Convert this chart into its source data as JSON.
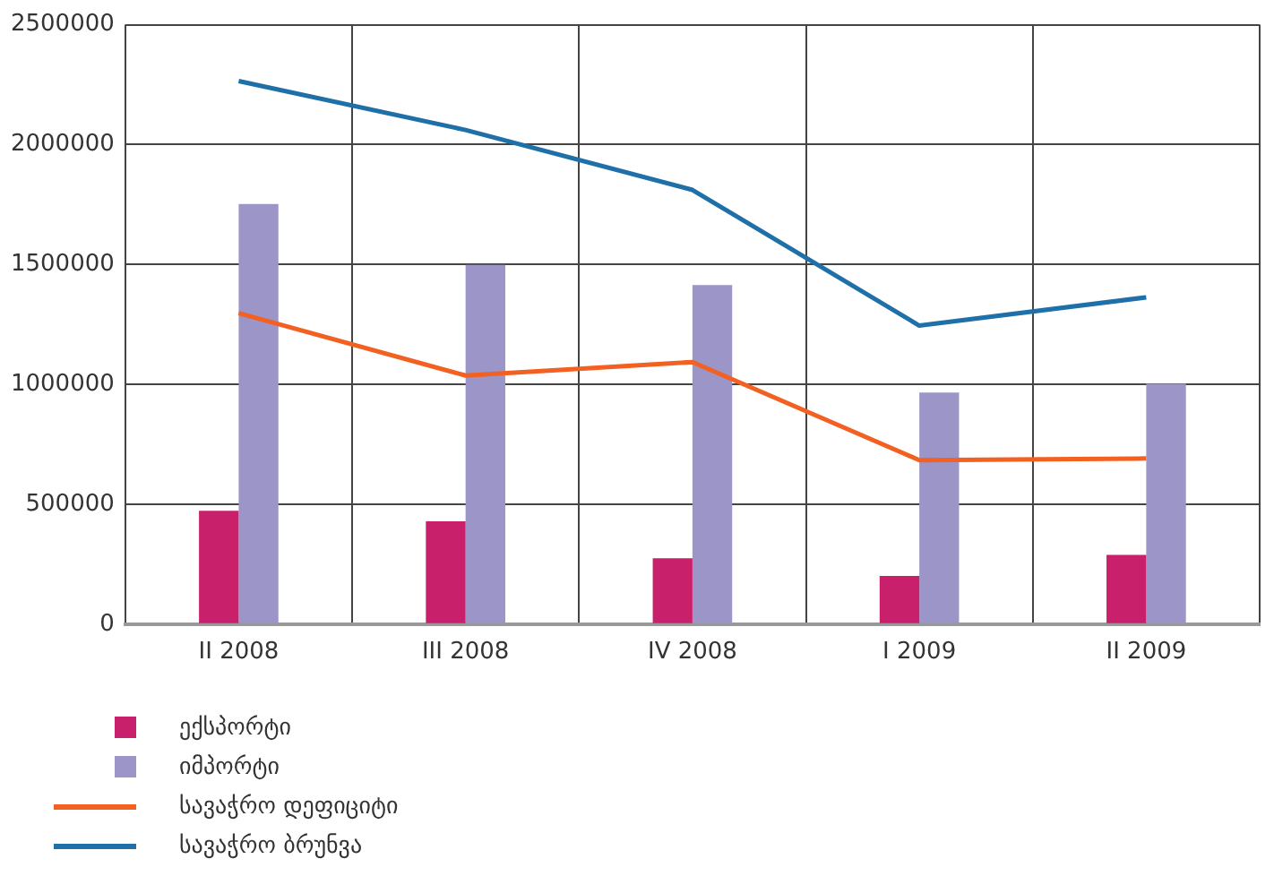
{
  "chart_data": {
    "type": "bar",
    "categories": [
      "II 2008",
      "III 2008",
      "IV 2008",
      "I 2009",
      "II 2009"
    ],
    "series": [
      {
        "name": "ექსპორტი",
        "color": "#c8206a",
        "values": [
          473000,
          429000,
          275000,
          201000,
          289000
        ]
      },
      {
        "name": "იმპორტი",
        "color": "#9b95c8",
        "values": [
          1752000,
          1498000,
          1414000,
          966000,
          1002000
        ]
      },
      {
        "name": "სავაჭრო დეფიციტი",
        "type": "line",
        "color": "#f26122",
        "values": [
          1297000,
          1037000,
          1093000,
          684000,
          691000
        ]
      },
      {
        "name": "სავაჭრო ბრუნვა",
        "type": "line",
        "color": "#1f6fa8",
        "values": [
          2265000,
          2061000,
          1811000,
          1245000,
          1363000
        ]
      }
    ],
    "ylim": [
      0,
      2500000
    ],
    "yticks": [
      0,
      500000,
      1000000,
      1500000,
      2000000,
      2500000
    ],
    "grid": true,
    "legend": "bottom left",
    "marker": "none"
  }
}
